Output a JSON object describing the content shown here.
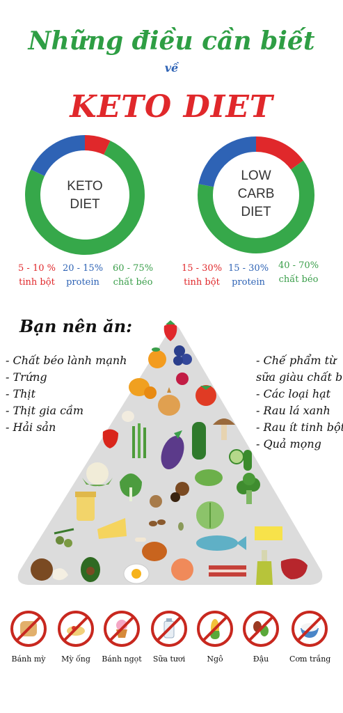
{
  "header": {
    "title_line1": "Những điều cần biết",
    "title_ve": "về",
    "title_line2": "KETO DIET"
  },
  "colors": {
    "carb": "#e0282b",
    "protein": "#2e63b5",
    "fat": "#36a84a",
    "title_green": "#2e9e44"
  },
  "keto": {
    "label_line1": "KETO",
    "label_line2": "DIET",
    "share": {
      "carb": 0.07,
      "protein": 0.18,
      "fat": 0.75
    },
    "carb_pct": "5 - 10 %",
    "carb_name": "tinh bột",
    "protein_pct": "20 - 15%",
    "protein_name": "protein",
    "fat_pct": "60 - 75%",
    "fat_name": "chất béo"
  },
  "lowcarb": {
    "label_line1": "LOW",
    "label_line2": "CARB",
    "label_line3": "DIET",
    "share": {
      "carb": 0.15,
      "protein": 0.22,
      "fat": 0.63
    },
    "carb_pct": "15 - 30%",
    "carb_name": "tinh bột",
    "protein_pct": "15 - 30%",
    "protein_name": "protein",
    "fat_pct": "40 - 70%",
    "fat_name": "chất béo"
  },
  "eat": {
    "title": "Bạn nên ăn:",
    "left": [
      "- Chất béo lành mạnh",
      "- Trứng",
      "- Thịt",
      "- Thịt gia cầm",
      "- Hải sản"
    ],
    "right": [
      "- Chế phẩm từ",
      "sữa giàu chất béo",
      "- Các loại hạt",
      "- Rau lá xanh",
      "- Rau ít tinh bột",
      "- Quả mọng"
    ]
  },
  "avoid": [
    {
      "label": "Bánh mỳ",
      "icon": "bread-icon"
    },
    {
      "label": "Mỳ ống",
      "icon": "pasta-icon"
    },
    {
      "label": "Bánh ngọt",
      "icon": "cupcake-icon"
    },
    {
      "label": "Sữa tươi",
      "icon": "milk-icon"
    },
    {
      "label": "Ngô",
      "icon": "corn-icon"
    },
    {
      "label": "Đậu",
      "icon": "beans-icon"
    },
    {
      "label": "Cơm trắng",
      "icon": "rice-icon"
    }
  ]
}
